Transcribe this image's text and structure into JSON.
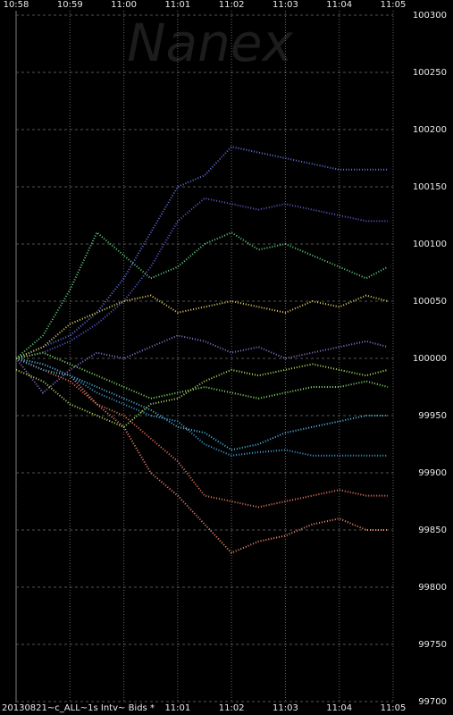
{
  "chart_data": {
    "type": "line",
    "watermark": "Nanex",
    "caption": "20130821~c_ALL~1s Intv~ Bids *",
    "x": [
      658,
      658.5,
      659,
      659.5,
      660,
      660.5,
      661,
      661.5,
      662,
      662.5,
      663,
      663.5,
      664,
      664.5,
      664.9
    ],
    "xlim": [
      658,
      665
    ],
    "xticks": [
      {
        "value": 658,
        "label": "10:58"
      },
      {
        "value": 659,
        "label": "10:59"
      },
      {
        "value": 660,
        "label": "11:00"
      },
      {
        "value": 661,
        "label": "11:01"
      },
      {
        "value": 662,
        "label": "11:02"
      },
      {
        "value": 663,
        "label": "11:03"
      },
      {
        "value": 664,
        "label": "11:04"
      },
      {
        "value": 665,
        "label": "11:05"
      }
    ],
    "ylim": [
      99700,
      100300
    ],
    "yticks": [
      99700,
      99750,
      99800,
      99850,
      99900,
      99950,
      100000,
      100050,
      100100,
      100150,
      100200,
      100250,
      100300
    ],
    "grid": true,
    "series": [
      {
        "color": "#f08a70",
        "values": [
          100000,
          99995,
          99985,
          99960,
          99940,
          99900,
          99880,
          99855,
          99830,
          99840,
          99845,
          99855,
          99860,
          99850,
          99850
        ]
      },
      {
        "color": "#e87860",
        "values": [
          100000,
          99990,
          99980,
          99960,
          99950,
          99930,
          99910,
          99880,
          99875,
          99870,
          99875,
          99880,
          99885,
          99880,
          99880
        ]
      },
      {
        "color": "#6070e0",
        "values": [
          100000,
          100010,
          100020,
          100040,
          100070,
          100110,
          100150,
          100160,
          100185,
          100180,
          100175,
          100170,
          100165,
          100165,
          100165
        ]
      },
      {
        "color": "#5c5cd0",
        "values": [
          100000,
          100005,
          100015,
          100030,
          100050,
          100080,
          100120,
          100140,
          100135,
          100130,
          100135,
          100130,
          100125,
          100120,
          100120
        ]
      },
      {
        "color": "#60d080",
        "values": [
          100000,
          100020,
          100060,
          100110,
          100090,
          100070,
          100080,
          100100,
          100110,
          100095,
          100100,
          100090,
          100080,
          100070,
          100080
        ]
      },
      {
        "color": "#e0d060",
        "values": [
          100000,
          100010,
          100030,
          100040,
          100050,
          100055,
          100040,
          100045,
          100050,
          100045,
          100040,
          100050,
          100045,
          100055,
          100050
        ]
      },
      {
        "color": "#50b8e0",
        "values": [
          100000,
          99990,
          99985,
          99975,
          99965,
          99955,
          99940,
          99935,
          99920,
          99925,
          99935,
          99940,
          99945,
          99950,
          99950
        ]
      },
      {
        "color": "#40a0d8",
        "values": [
          100000,
          99995,
          99985,
          99970,
          99960,
          99950,
          99945,
          99925,
          99915,
          99918,
          99920,
          99915,
          99915,
          99915,
          99915
        ]
      },
      {
        "color": "#9070d0",
        "values": [
          100000,
          99970,
          99990,
          100005,
          100000,
          100010,
          100020,
          100015,
          100005,
          100010,
          100000,
          100005,
          100010,
          100015,
          100010
        ]
      },
      {
        "color": "#80e060",
        "values": [
          100000,
          100005,
          99995,
          99985,
          99975,
          99965,
          99970,
          99975,
          99970,
          99965,
          99970,
          99975,
          99975,
          99980,
          99975
        ]
      },
      {
        "color": "#b0e060",
        "values": [
          99990,
          99980,
          99960,
          99950,
          99940,
          99960,
          99965,
          99980,
          99990,
          99985,
          99990,
          99995,
          99990,
          99985,
          99990
        ]
      }
    ]
  }
}
